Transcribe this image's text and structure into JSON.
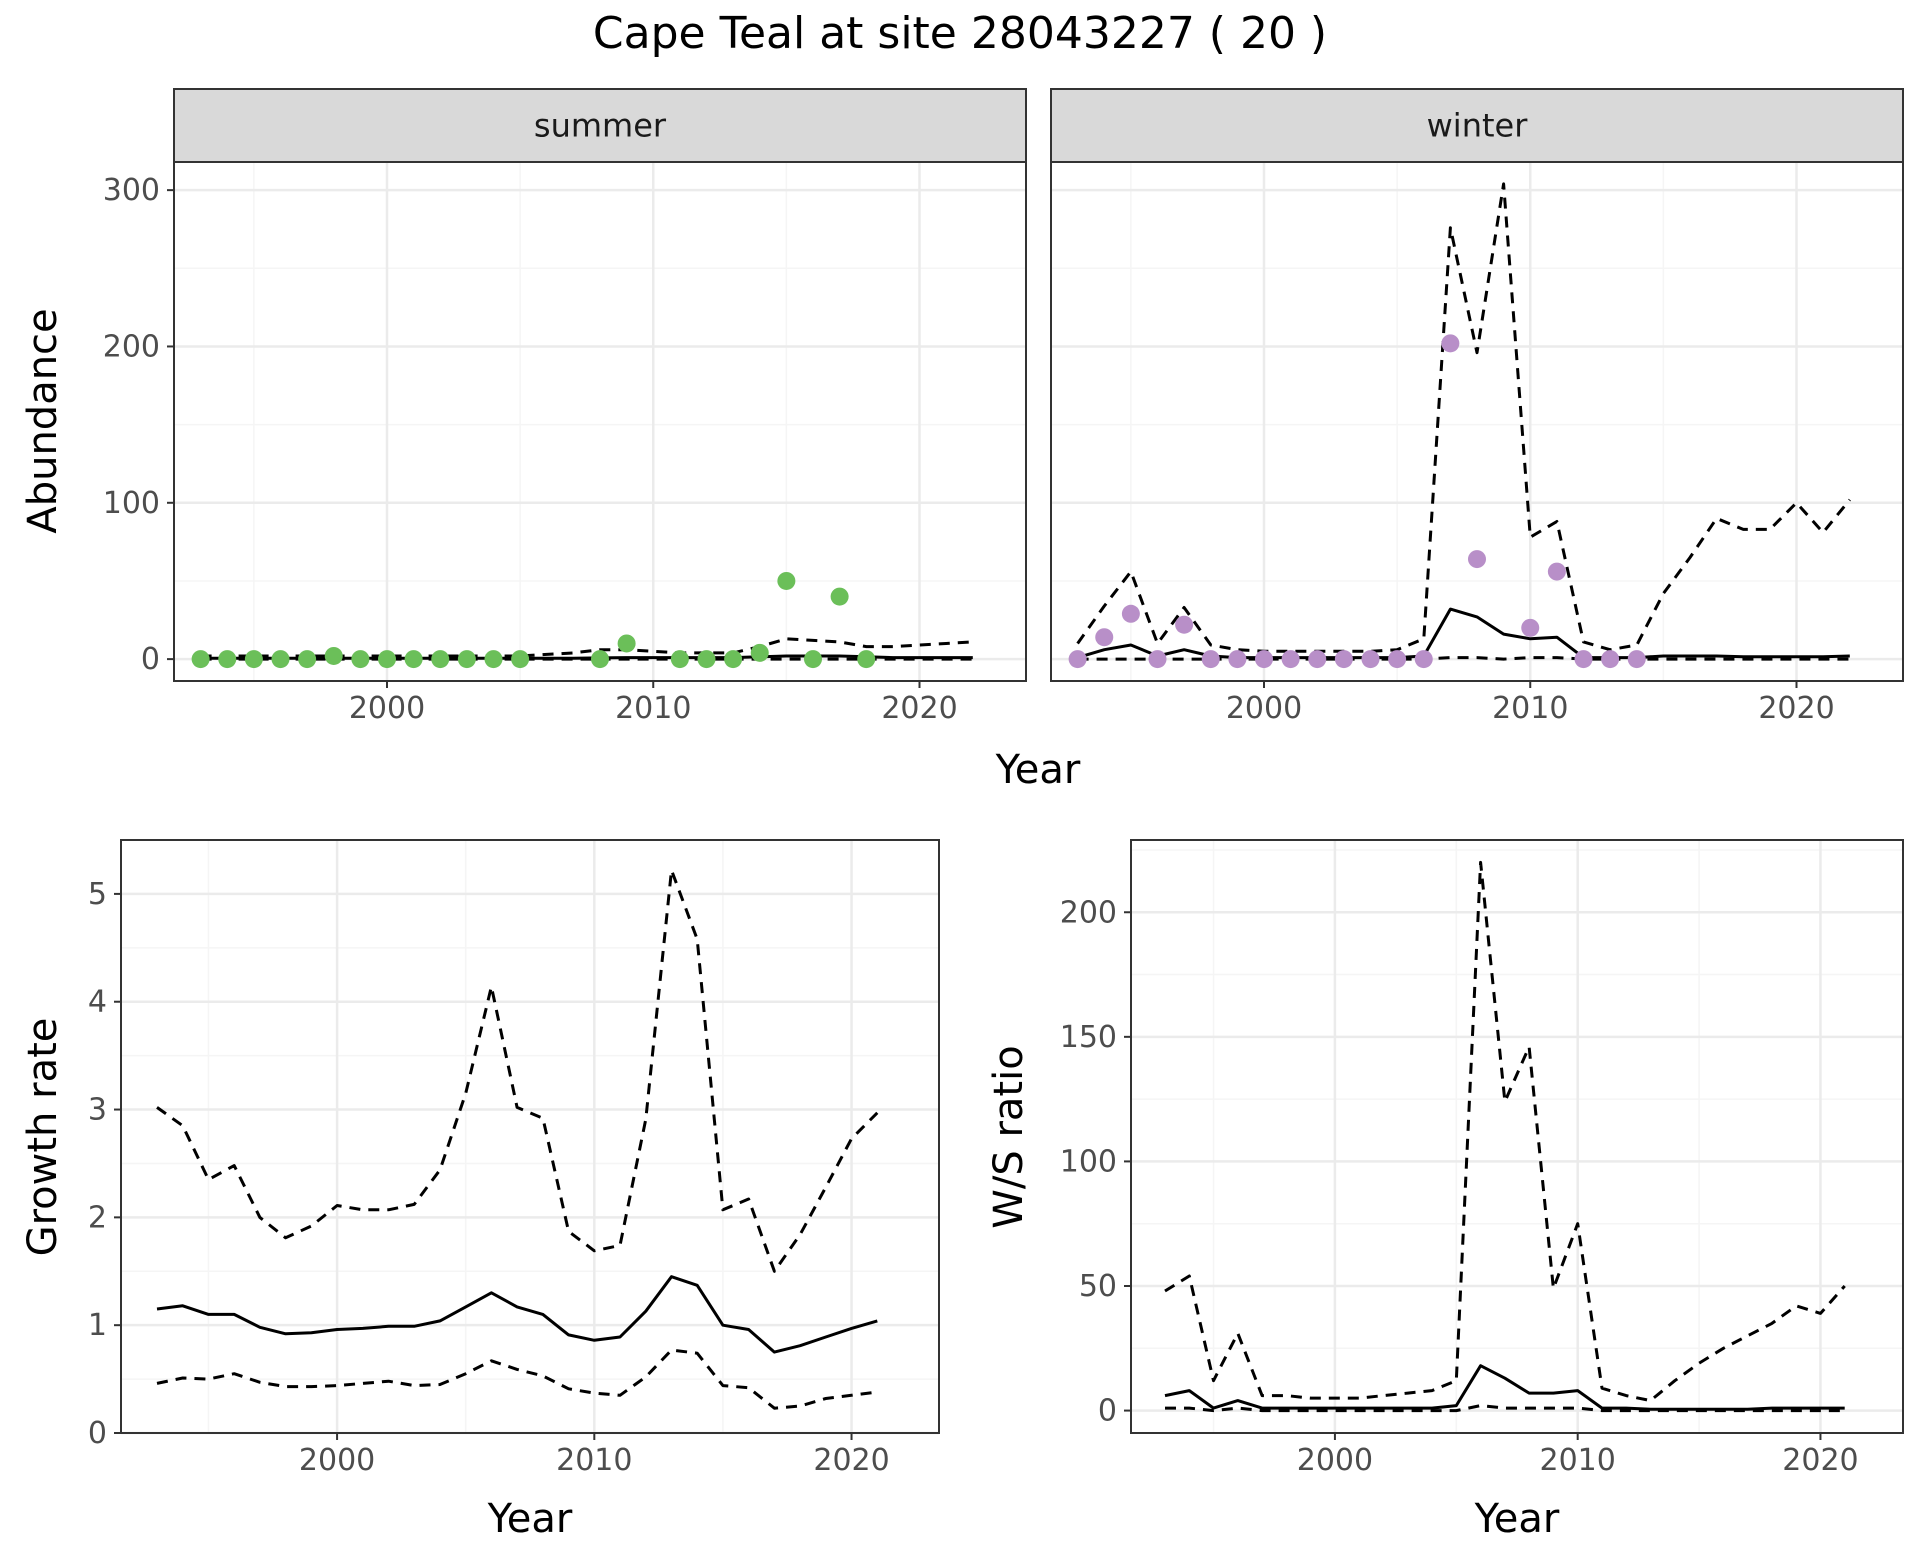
{
  "figure": {
    "title": "Cape Teal at site 28043227 ( 20 )"
  },
  "colors": {
    "summer_points": "#6BBF59",
    "winter_points": "#B88FC8",
    "lines": "#000000",
    "grid_major": "#EBEBEB",
    "grid_minor": "#F5F5F5",
    "strip_fill": "#D9D9D9"
  },
  "chart_data": [
    {
      "id": "abundance",
      "type": "scatter",
      "title": "",
      "xlabel": "Year",
      "ylabel": "Abundance",
      "xlim": [
        1992,
        2024
      ],
      "ylim": [
        -14,
        318
      ],
      "xticks": [
        2000,
        2010,
        2020
      ],
      "yticks": [
        0,
        100,
        200,
        300
      ],
      "panels": [
        {
          "strip": "summer",
          "points": {
            "x": [
              1993,
              1994,
              1995,
              1996,
              1997,
              1998,
              1999,
              2000,
              2001,
              2002,
              2003,
              2004,
              2005,
              2008,
              2009,
              2011,
              2012,
              2013,
              2014,
              2015,
              2016,
              2017,
              2018
            ],
            "y": [
              0,
              0,
              0,
              0,
              0,
              2,
              0,
              0,
              0,
              0,
              0,
              0,
              0,
              0,
              10,
              0,
              0,
              0,
              4,
              50,
              0,
              40,
              0
            ]
          },
          "estimate": {
            "x": [
              1993,
              1994,
              1995,
              1996,
              1997,
              1998,
              1999,
              2000,
              2001,
              2002,
              2003,
              2004,
              2005,
              2006,
              2007,
              2008,
              2009,
              2010,
              2011,
              2012,
              2013,
              2014,
              2015,
              2016,
              2017,
              2018,
              2019,
              2020,
              2021,
              2022
            ],
            "y": [
              0.5,
              0.5,
              0.5,
              0.5,
              0.5,
              0.5,
              0.5,
              0.5,
              0.5,
              0.5,
              0.5,
              0.5,
              0.5,
              0.5,
              0.6,
              0.8,
              1,
              1,
              1,
              1,
              1,
              1.5,
              2,
              2,
              2,
              1.5,
              1,
              1,
              1,
              1
            ]
          },
          "upper": {
            "x": [
              1993,
              1994,
              1995,
              1996,
              1997,
              1998,
              1999,
              2000,
              2001,
              2002,
              2003,
              2004,
              2005,
              2006,
              2007,
              2008,
              2009,
              2010,
              2011,
              2012,
              2013,
              2014,
              2015,
              2016,
              2017,
              2018,
              2019,
              2020,
              2021,
              2022
            ],
            "y": [
              2,
              2,
              2,
              2,
              2,
              2,
              2,
              2,
              2,
              2,
              2,
              2,
              2,
              3,
              4,
              6,
              6,
              5,
              4,
              4,
              4,
              8,
              13,
              12,
              11,
              8,
              8,
              9,
              10,
              11
            ]
          },
          "lower": {
            "x": [
              1993,
              2022
            ],
            "y": [
              0,
              0
            ]
          }
        },
        {
          "strip": "winter",
          "points": {
            "x": [
              1993,
              1994,
              1995,
              1996,
              1997,
              1998,
              1999,
              2000,
              2001,
              2002,
              2003,
              2004,
              2005,
              2006,
              2007,
              2008,
              2010,
              2011,
              2012,
              2013,
              2014
            ],
            "y": [
              0,
              14,
              29,
              0,
              22,
              0,
              0,
              0,
              0,
              0,
              0,
              0,
              0,
              0,
              202,
              64,
              20,
              56,
              0,
              0,
              0
            ]
          },
          "estimate": {
            "x": [
              1993,
              1994,
              1995,
              1996,
              1997,
              1998,
              1999,
              2000,
              2001,
              2002,
              2003,
              2004,
              2005,
              2006,
              2007,
              2008,
              2009,
              2010,
              2011,
              2012,
              2013,
              2014,
              2015,
              2016,
              2017,
              2018,
              2019,
              2020,
              2021,
              2022
            ],
            "y": [
              1,
              6,
              9,
              2,
              6,
              2,
              1,
              1,
              1,
              1,
              1,
              1,
              1,
              2,
              32,
              27,
              16,
              13,
              14,
              1,
              1,
              1,
              2,
              2,
              2,
              1.5,
              1.5,
              1.5,
              1.5,
              2
            ]
          },
          "upper": {
            "x": [
              1993,
              1994,
              1995,
              1996,
              1997,
              1998,
              1999,
              2000,
              2001,
              2002,
              2003,
              2004,
              2005,
              2006,
              2007,
              2008,
              2009,
              2010,
              2011,
              2012,
              2013,
              2014,
              2015,
              2016,
              2017,
              2018,
              2019,
              2020,
              2021,
              2022
            ],
            "y": [
              10,
              34,
              56,
              10,
              33,
              9,
              6,
              5,
              5,
              5,
              5,
              5,
              6,
              13,
              276,
              196,
              304,
              78,
              88,
              11,
              6,
              9,
              42,
              65,
              90,
              83,
              83,
              100,
              81,
              102
            ]
          },
          "lower": {
            "x": [
              1993,
              1994,
              1995,
              1996,
              1997,
              1998,
              1999,
              2000,
              2001,
              2002,
              2003,
              2004,
              2005,
              2006,
              2007,
              2008,
              2009,
              2010,
              2011,
              2012,
              2013,
              2014,
              2015,
              2016,
              2017,
              2018,
              2019,
              2020,
              2021,
              2022
            ],
            "y": [
              0,
              0,
              0,
              0,
              0,
              0,
              0,
              0,
              0,
              0,
              0,
              0,
              0,
              0,
              1,
              1,
              0,
              1,
              1,
              0,
              0,
              0,
              0,
              0,
              0,
              0,
              0,
              0,
              0,
              0
            ]
          }
        }
      ]
    },
    {
      "id": "growth",
      "type": "line",
      "title": "",
      "xlabel": "Year",
      "ylabel": "Growth rate",
      "xlim": [
        1991.6,
        2023.4
      ],
      "ylim": [
        0,
        5.5
      ],
      "xticks": [
        2000,
        2010,
        2020
      ],
      "yticks": [
        0,
        1,
        2,
        3,
        4,
        5
      ],
      "estimate": {
        "x": [
          1993,
          1994,
          1995,
          1996,
          1997,
          1998,
          1999,
          2000,
          2001,
          2002,
          2003,
          2004,
          2005,
          2006,
          2007,
          2008,
          2009,
          2010,
          2011,
          2012,
          2013,
          2014,
          2015,
          2016,
          2017,
          2018,
          2019,
          2020,
          2021
        ],
        "y": [
          1.15,
          1.18,
          1.1,
          1.1,
          0.98,
          0.92,
          0.93,
          0.96,
          0.97,
          0.99,
          0.99,
          1.04,
          1.17,
          1.3,
          1.17,
          1.1,
          0.91,
          0.86,
          0.89,
          1.13,
          1.45,
          1.37,
          1.0,
          0.96,
          0.75,
          0.81,
          0.89,
          0.97,
          1.04
        ]
      },
      "upper": {
        "x": [
          1993,
          1994,
          1995,
          1996,
          1997,
          1998,
          1999,
          2000,
          2001,
          2002,
          2003,
          2004,
          2005,
          2006,
          2007,
          2008,
          2009,
          2010,
          2011,
          2012,
          2013,
          2014,
          2015,
          2016,
          2017,
          2018,
          2019,
          2020,
          2021
        ],
        "y": [
          3.02,
          2.85,
          2.35,
          2.48,
          2.0,
          1.81,
          1.92,
          2.11,
          2.07,
          2.07,
          2.12,
          2.44,
          3.15,
          4.14,
          3.02,
          2.92,
          1.87,
          1.69,
          1.74,
          2.91,
          5.22,
          4.58,
          2.07,
          2.17,
          1.5,
          1.84,
          2.28,
          2.73,
          2.97
        ]
      },
      "lower": {
        "x": [
          1993,
          1994,
          1995,
          1996,
          1997,
          1998,
          1999,
          2000,
          2001,
          2002,
          2003,
          2004,
          2005,
          2006,
          2007,
          2008,
          2009,
          2010,
          2011,
          2012,
          2013,
          2014,
          2015,
          2016,
          2017,
          2018,
          2019,
          2020,
          2021
        ],
        "y": [
          0.46,
          0.51,
          0.5,
          0.55,
          0.47,
          0.43,
          0.43,
          0.44,
          0.46,
          0.48,
          0.44,
          0.45,
          0.55,
          0.67,
          0.59,
          0.53,
          0.41,
          0.37,
          0.35,
          0.52,
          0.77,
          0.74,
          0.44,
          0.42,
          0.23,
          0.25,
          0.32,
          0.35,
          0.38
        ]
      }
    },
    {
      "id": "ratio",
      "type": "line",
      "title": "",
      "xlabel": "Year",
      "ylabel": "W/S ratio",
      "xlim": [
        1991.6,
        2023.4
      ],
      "ylim": [
        -9,
        229
      ],
      "xticks": [
        2000,
        2010,
        2020
      ],
      "yticks": [
        0,
        50,
        100,
        150,
        200
      ],
      "estimate": {
        "x": [
          1993,
          1994,
          1995,
          1996,
          1997,
          1998,
          1999,
          2000,
          2001,
          2002,
          2003,
          2004,
          2005,
          2006,
          2007,
          2008,
          2009,
          2010,
          2011,
          2012,
          2013,
          2014,
          2015,
          2016,
          2017,
          2018,
          2019,
          2020,
          2021
        ],
        "y": [
          6,
          8,
          1,
          4,
          1,
          1,
          1,
          1,
          1,
          1,
          1,
          1,
          2,
          18,
          13,
          7,
          7,
          8,
          1,
          1,
          0.5,
          0.5,
          0.5,
          0.5,
          0.5,
          1,
          1,
          1,
          1
        ]
      },
      "upper": {
        "x": [
          1993,
          1994,
          1995,
          1996,
          1997,
          1998,
          1999,
          2000,
          2001,
          2002,
          2003,
          2004,
          2005,
          2006,
          2007,
          2008,
          2009,
          2010,
          2011,
          2012,
          2013,
          2014,
          2015,
          2016,
          2017,
          2018,
          2019,
          2020,
          2021
        ],
        "y": [
          48,
          54,
          12,
          31,
          6,
          6,
          5,
          5,
          5,
          6,
          7,
          8,
          12,
          220,
          124,
          146,
          49,
          75,
          9,
          6,
          4,
          12,
          19,
          25,
          30,
          35,
          42,
          39,
          50
        ]
      },
      "lower": {
        "x": [
          1993,
          1994,
          1995,
          1996,
          1997,
          1998,
          1999,
          2000,
          2001,
          2002,
          2003,
          2004,
          2005,
          2006,
          2007,
          2008,
          2009,
          2010,
          2011,
          2012,
          2013,
          2014,
          2015,
          2016,
          2017,
          2018,
          2019,
          2020,
          2021
        ],
        "y": [
          1,
          1,
          0,
          1,
          0,
          0,
          0,
          0,
          0,
          0,
          0,
          0,
          0,
          2,
          1,
          1,
          1,
          1,
          0,
          0,
          0,
          0,
          0,
          0,
          0,
          0,
          0,
          0,
          0
        ]
      }
    }
  ]
}
